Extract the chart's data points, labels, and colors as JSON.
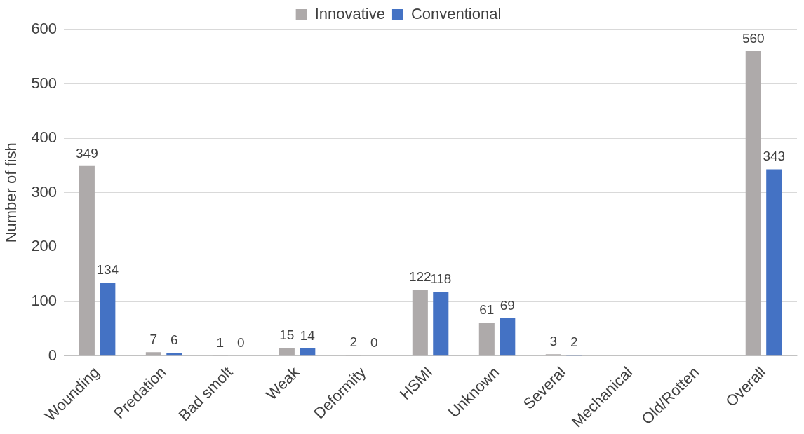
{
  "chart_data": {
    "type": "bar",
    "ylabel": "Number of fish",
    "categories": [
      "Wounding",
      "Predation",
      "Bad smolt",
      "Weak",
      "Deformity",
      "HSMI",
      "Unknown",
      "Several",
      "Mechanical",
      "Old/Rotten",
      "Overall"
    ],
    "series": [
      {
        "name": "Innovative",
        "color": "#aeaaaa",
        "values": [
          349,
          7,
          1,
          15,
          2,
          122,
          61,
          3,
          null,
          null,
          560
        ]
      },
      {
        "name": "Conventional",
        "color": "#4472c4",
        "values": [
          134,
          6,
          0,
          14,
          0,
          118,
          69,
          2,
          null,
          null,
          343
        ]
      }
    ],
    "ylim": [
      0,
      600
    ],
    "yticks": [
      0,
      100,
      200,
      300,
      400,
      500,
      600
    ],
    "grid": "y",
    "legend": "top",
    "data_labels": true
  }
}
